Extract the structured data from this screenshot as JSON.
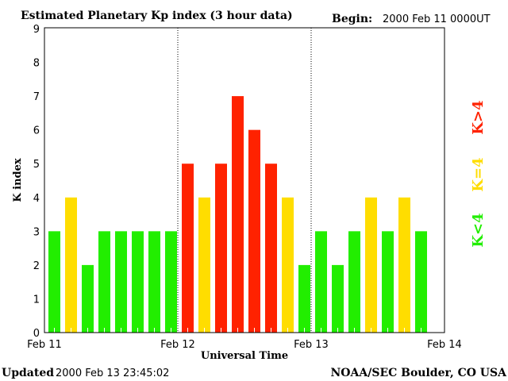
{
  "chart_data": {
    "type": "bar",
    "title": "Estimated Planetary Kp index (3 hour data)",
    "begin_label": "Begin:",
    "begin_value": "2000 Feb 11 0000UT",
    "xlabel": "Universal Time",
    "ylabel": "K index",
    "ylim": [
      0,
      9
    ],
    "yticks": [
      "0",
      "1",
      "2",
      "3",
      "4",
      "5",
      "6",
      "7",
      "8",
      "9"
    ],
    "xticks": [
      "Feb 11",
      "Feb 12",
      "Feb 13",
      "Feb 14"
    ],
    "slots_per_day": 8,
    "values": [
      3,
      4,
      2,
      3,
      3,
      3,
      3,
      3,
      5,
      4,
      5,
      7,
      6,
      5,
      4,
      2,
      3,
      2,
      3,
      4,
      3,
      4,
      3
    ],
    "colors": {
      "low": "#22ee00",
      "equal": "#ffdd00",
      "high": "#ff2200"
    },
    "legend": [
      {
        "label": "K<4",
        "color": "#22ee00"
      },
      {
        "label": "K=4",
        "color": "#ffdd00"
      },
      {
        "label": "K>4",
        "color": "#ff2200"
      }
    ],
    "legend_placement": "right"
  },
  "footer": {
    "updated_label": "Updated",
    "updated_value": "2000 Feb 13 23:45:02",
    "source": "NOAA/SEC Boulder, CO USA"
  }
}
